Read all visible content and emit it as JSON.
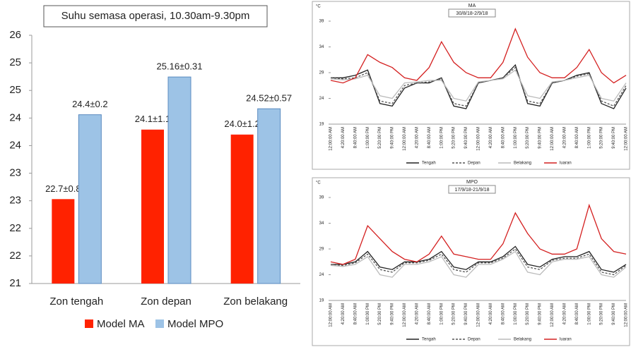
{
  "chart_data": [
    {
      "type": "bar",
      "title": "Suhu semasa operasi, 10.30am-9.30pm",
      "categories": [
        "Zon tengah",
        "Zon depan",
        "Zon belakang"
      ],
      "series": [
        {
          "name": "Model MA",
          "color": "#ff2200",
          "values": [
            22.7,
            24.1,
            24.0
          ],
          "value_labels": [
            "22.7±0.8",
            "24.1±1.1",
            "24.0±1.2"
          ]
        },
        {
          "name": "Model MPO",
          "color": "#9dc3e6",
          "values": [
            24.4,
            25.16,
            24.52
          ],
          "value_labels": [
            "24.4±0.2",
            "25.16±0.31",
            "24.52±0.57"
          ]
        }
      ],
      "ylim": [
        21,
        26
      ],
      "yticks": [
        21,
        {
          "value": 21.556,
          "label": "22"
        },
        {
          "value": 22.111,
          "label": "22"
        },
        {
          "value": 22.667,
          "label": "23"
        },
        {
          "value": 23.222,
          "label": "23"
        },
        {
          "value": 23.778,
          "label": "24"
        },
        {
          "value": 24.333,
          "label": "24"
        },
        {
          "value": 24.889,
          "label": "25"
        },
        {
          "value": 25.444,
          "label": "25"
        },
        26
      ],
      "legend": "bottom"
    },
    {
      "type": "line",
      "title": "MA",
      "subtitle": "30/8/18-2/9/18",
      "y_label": "°C",
      "categories": [
        "12:00:00 AM",
        "4:20:00 AM",
        "8:40:00 AM",
        "1:00:00 PM",
        "5:20:00 PM",
        "9:40:00 PM",
        "12:00:00 AM",
        "4:20:00 AM",
        "8:40:00 AM",
        "1:00:00 PM",
        "5:20:00 PM",
        "9:40:00 PM",
        "12:00:00 AM",
        "4:20:00 AM",
        "8:40:00 AM",
        "1:00:00 PM",
        "5:20:00 PM",
        "9:40:00 PM",
        "12:00:00 AM",
        "4:20:00 AM",
        "8:40:00 AM",
        "1:00:00 PM",
        "5:20:00 PM",
        "9:40:00 PM",
        "12:00:00 AM"
      ],
      "series": [
        {
          "name": "Tengah",
          "color": "#222222",
          "line_style": "solid",
          "values": [
            28,
            28,
            28.5,
            29.5,
            23,
            22.5,
            26,
            27,
            27,
            28,
            22.5,
            22,
            27,
            27.5,
            28,
            30.5,
            23,
            22.5,
            27,
            27.5,
            28.5,
            29,
            23,
            22,
            26
          ]
        },
        {
          "name": "Depan",
          "color": "#555555",
          "line_style": "dashed",
          "values": [
            28,
            27.8,
            28,
            29,
            23.5,
            23,
            26.5,
            27,
            27.2,
            27.8,
            23,
            22.5,
            27,
            27.5,
            28,
            30,
            23.5,
            23,
            27,
            27.5,
            28.3,
            28.8,
            23.5,
            22.5,
            26.5
          ]
        },
        {
          "name": "Belakang",
          "color": "#bbbbbb",
          "line_style": "solid",
          "values": [
            27.8,
            27.6,
            27.8,
            28.5,
            24.5,
            24,
            27,
            27.2,
            27.5,
            27.5,
            24,
            23.5,
            27.2,
            27.5,
            27.8,
            29.5,
            24.5,
            24,
            27.2,
            27.5,
            28,
            28.5,
            24,
            23.5,
            27
          ]
        },
        {
          "name": "luaran",
          "color": "#d42020",
          "line_style": "solid",
          "values": [
            27.5,
            27,
            28,
            32.5,
            31,
            30,
            28,
            27.5,
            30,
            35,
            31,
            29,
            28,
            28,
            31,
            37.5,
            32,
            29,
            28,
            28,
            30,
            33.5,
            29,
            27,
            28.5
          ]
        }
      ],
      "ylim": [
        19,
        39
      ],
      "yticks": [
        19,
        24,
        29,
        34,
        39
      ],
      "legend": "bottom"
    },
    {
      "type": "line",
      "title": "MPO",
      "subtitle": "17/9/18-21/9/18",
      "y_label": "°C",
      "categories": [
        "12:00:00 AM",
        "4:20:00 AM",
        "8:40:00 AM",
        "1:00:00 PM",
        "5:20:00 PM",
        "9:40:00 PM",
        "12:00:00 AM",
        "4:20:00 AM",
        "8:40:00 AM",
        "1:00:00 PM",
        "5:20:00 PM",
        "9:40:00 PM",
        "12:00:00 AM",
        "4:20:00 AM",
        "8:40:00 AM",
        "1:00:00 PM",
        "5:20:00 PM",
        "9:40:00 PM",
        "12:00:00 AM",
        "4:20:00 AM",
        "8:40:00 AM",
        "1:00:00 PM",
        "5:20:00 PM",
        "9:40:00 PM",
        "12:00:00 AM"
      ],
      "series": [
        {
          "name": "Tengah",
          "color": "#222222",
          "line_style": "solid",
          "values": [
            26,
            26,
            26.5,
            28.5,
            25.5,
            25,
            26.5,
            26.5,
            27,
            28.5,
            25.5,
            25,
            26.5,
            26.5,
            27.5,
            29.5,
            26,
            25.5,
            27,
            27.5,
            27.5,
            28.5,
            25,
            24.5,
            26
          ]
        },
        {
          "name": "Depan",
          "color": "#555555",
          "line_style": "dashed",
          "values": [
            26,
            25.8,
            26.3,
            28,
            25,
            24.5,
            26.3,
            26.3,
            26.8,
            28,
            25,
            24.5,
            26.3,
            26.3,
            27.2,
            29,
            25.5,
            25,
            26.8,
            27.2,
            27.2,
            28,
            24.5,
            24,
            25.8
          ]
        },
        {
          "name": "Belakang",
          "color": "#bbbbbb",
          "line_style": "solid",
          "values": [
            25.8,
            25.6,
            26,
            27.5,
            24,
            23.5,
            26,
            26,
            26.5,
            27.5,
            24,
            23.5,
            26,
            26,
            27,
            28.5,
            24.5,
            24,
            26.5,
            27,
            27,
            27.5,
            24,
            23.5,
            25.5
          ]
        },
        {
          "name": "luaran",
          "color": "#d42020",
          "line_style": "solid",
          "values": [
            26.5,
            26,
            27,
            33.5,
            31,
            28.5,
            27,
            26.5,
            28,
            31.5,
            28,
            27.5,
            27,
            27,
            30,
            36,
            32,
            29,
            28,
            28,
            29,
            37.5,
            31,
            28.5,
            28
          ]
        }
      ],
      "ylim": [
        19,
        39
      ],
      "yticks": [
        19,
        24,
        29,
        34,
        39
      ],
      "legend": "bottom"
    }
  ]
}
